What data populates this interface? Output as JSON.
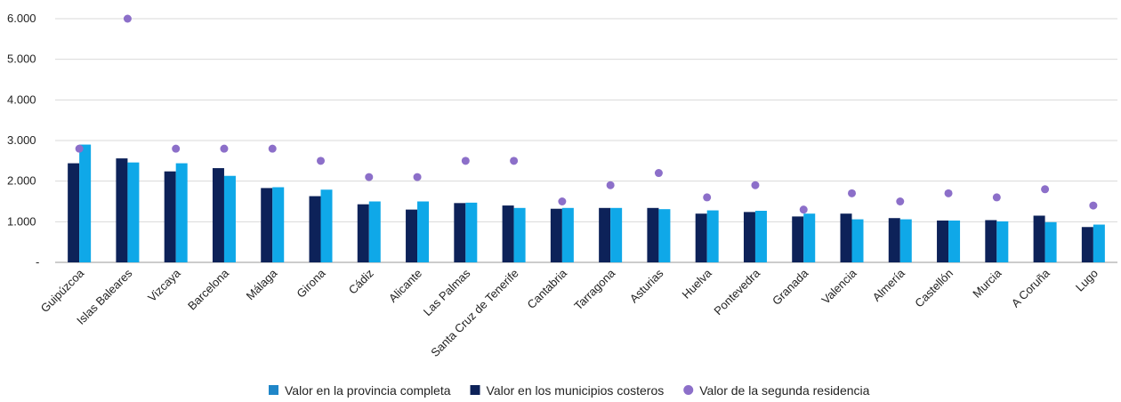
{
  "chart_data": {
    "type": "bar",
    "categories": [
      "Guipúzcoa",
      "Islas Baleares",
      "Vizcaya",
      "Barcelona",
      "Málaga",
      "Girona",
      "Cádiz",
      "Alicante",
      "Las Palmas",
      "Santa Cruz de Tenerife",
      "Cantabria",
      "Tarragona",
      "Asturias",
      "Huelva",
      "Pontevedra",
      "Granada",
      "Valencia",
      "Almería",
      "Castellón",
      "Murcia",
      "A Coruña",
      "Lugo"
    ],
    "series": [
      {
        "name": "Valor en los municipios costeros",
        "kind": "bar",
        "color": "#0d2259",
        "values": [
          2440,
          2560,
          2240,
          2320,
          1830,
          1630,
          1430,
          1300,
          1460,
          1400,
          1320,
          1340,
          1340,
          1200,
          1240,
          1130,
          1200,
          1090,
          1030,
          1040,
          1150,
          870
        ]
      },
      {
        "name": "Valor en la provincia completa",
        "kind": "bar",
        "color": "#0fa8e8",
        "values": [
          2900,
          2460,
          2440,
          2130,
          1850,
          1790,
          1500,
          1500,
          1470,
          1340,
          1340,
          1340,
          1310,
          1280,
          1270,
          1200,
          1060,
          1060,
          1030,
          1010,
          990,
          930
        ]
      },
      {
        "name": "Valor de la segunda residencia",
        "kind": "scatter",
        "color": "#8c6fc9",
        "values": [
          2800,
          6000,
          2800,
          2800,
          2800,
          2500,
          2100,
          2100,
          2500,
          2500,
          1500,
          1900,
          2200,
          1600,
          1900,
          1300,
          1700,
          1500,
          1700,
          1600,
          1800,
          1400
        ]
      }
    ],
    "yticks": [
      "-",
      "1.000",
      "2.000",
      "3.000",
      "4.000",
      "5.000",
      "6.000"
    ],
    "ylim": [
      0,
      6000
    ],
    "grid": true,
    "legend": {
      "position": "bottom",
      "items": [
        {
          "label": "Valor en la provincia completa",
          "marker": "square",
          "color": "#1f86c8"
        },
        {
          "label": "Valor en los municipios costeros",
          "marker": "square",
          "color": "#0d2259"
        },
        {
          "label": "Valor de la segunda residencia",
          "marker": "circle",
          "color": "#8c6fc9"
        }
      ]
    }
  }
}
